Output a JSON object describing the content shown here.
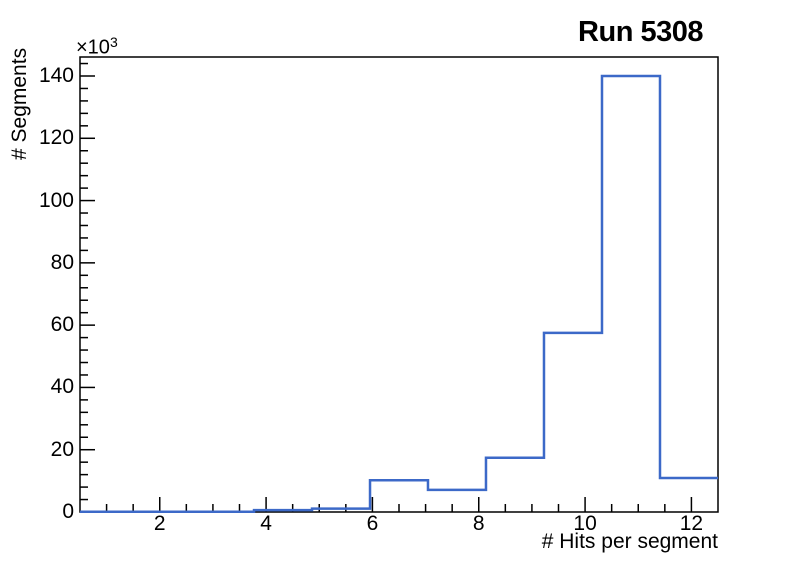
{
  "canvas": {
    "background": "#ffffff",
    "axis_color": "#000000"
  },
  "chart_data": {
    "type": "bar",
    "style": "step-histogram",
    "title": "Run 5308",
    "xlabel": "# Hits per segment",
    "ylabel": "# Segments",
    "y_scale": {
      "mantissa": "×10",
      "exponent": "3"
    },
    "y_unit_note": "values are in thousands of segments (×10^3)",
    "xlim": [
      0.5,
      12.5
    ],
    "ylim": [
      0,
      146.1
    ],
    "bin_edges": [
      0.5,
      1.591,
      2.682,
      3.773,
      4.864,
      5.955,
      7.045,
      8.136,
      9.227,
      10.318,
      11.409,
      12.5
    ],
    "values_thousands": [
      0.1,
      0.1,
      0.1,
      0.6,
      1.1,
      10.2,
      7.1,
      17.4,
      57.5,
      140,
      10.9
    ],
    "x_major_ticks": [
      2,
      4,
      6,
      8,
      10,
      12
    ],
    "x_tick_labels": [
      "2",
      "4",
      "6",
      "8",
      "10",
      "12"
    ],
    "x_minor_step": 0.5,
    "y_major_ticks": [
      0,
      20,
      40,
      60,
      80,
      100,
      120,
      140
    ],
    "y_tick_labels": [
      "0",
      "20",
      "40",
      "60",
      "80",
      "100",
      "120",
      "140"
    ],
    "y_minor_step": 4,
    "grid": false,
    "legend": "none",
    "line_color": "#3c69c8"
  }
}
